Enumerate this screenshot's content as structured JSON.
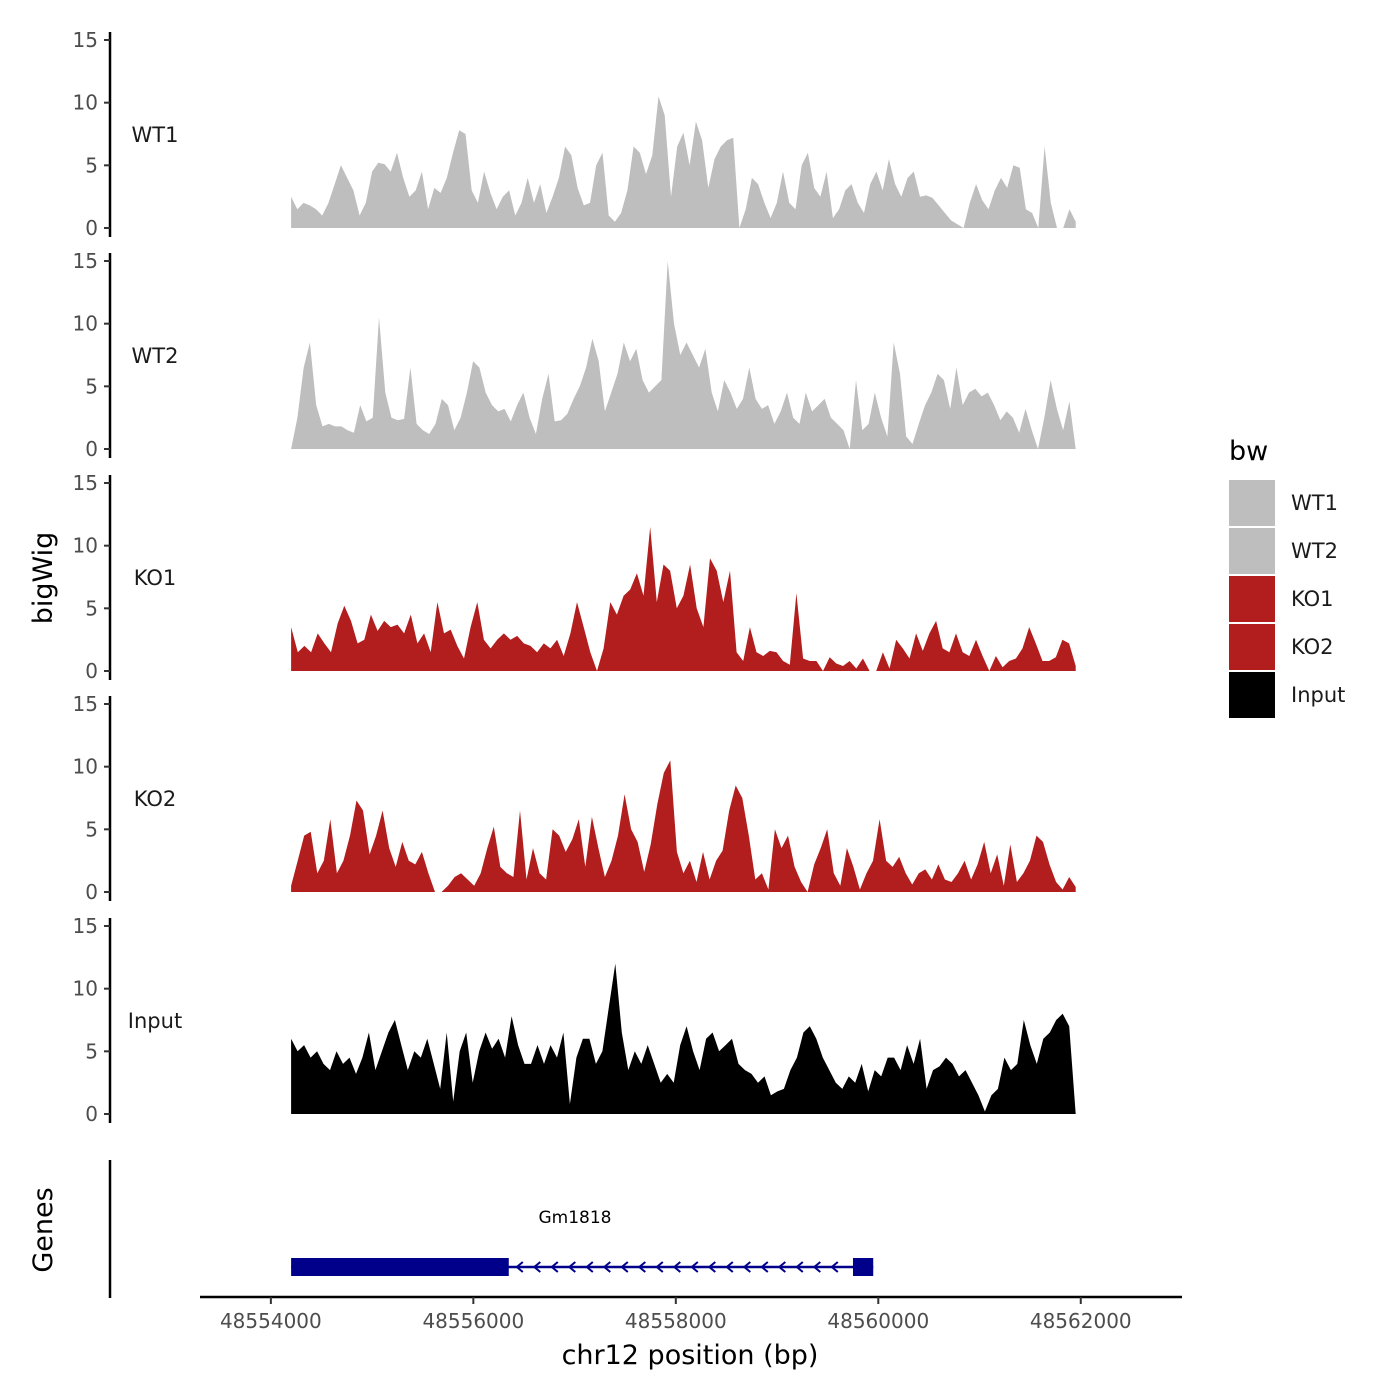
{
  "chart_data": {
    "type": "area",
    "subtype": "genome-coverage-tracks",
    "xlabel": "chr12 position (bp)",
    "ylabel": "bigWig",
    "genes_axis_label": "Genes",
    "xlim": [
      48553300,
      48563000
    ],
    "x_ticks": [
      48554000,
      48556000,
      48558000,
      48560000,
      48562000
    ],
    "x_tick_labels": [
      "48554000",
      "48556000",
      "48558000",
      "48560000",
      "48562000"
    ],
    "ylim": [
      0,
      15
    ],
    "y_ticks": [
      0,
      5,
      10,
      15
    ],
    "y_tick_labels": [
      "0",
      "5",
      "10",
      "15"
    ],
    "region": [
      48554200,
      48561950
    ],
    "legend": {
      "title": "bw",
      "entries": [
        {
          "label": "WT1",
          "color": "#bebebe"
        },
        {
          "label": "WT2",
          "color": "#bebebe"
        },
        {
          "label": "KO1",
          "color": "#b21e1e"
        },
        {
          "label": "KO2",
          "color": "#b21e1e"
        },
        {
          "label": "Input",
          "color": "#000000"
        }
      ]
    },
    "series": [
      {
        "name": "WT1",
        "color": "#bebebe",
        "values": [
          2.5,
          1.5,
          2,
          1.8,
          1.5,
          1,
          2,
          3.5,
          5,
          4,
          3,
          1,
          2,
          4.5,
          5.2,
          5.1,
          4.5,
          6,
          4,
          2.5,
          3,
          4.5,
          1.5,
          3.2,
          2.8,
          4,
          6,
          7.8,
          7.5,
          3,
          2,
          4.5,
          2.8,
          1.5,
          2.5,
          3,
          1,
          2,
          4,
          2,
          3.5,
          1.2,
          2.5,
          4,
          6.5,
          5.8,
          3.2,
          1.8,
          2,
          5,
          6,
          1,
          0.5,
          1.2,
          3,
          6.5,
          6,
          4.3,
          5.8,
          10.5,
          9,
          2.5,
          6.5,
          7.6,
          5,
          8.5,
          7,
          3.2,
          5.5,
          6.5,
          7,
          7.2,
          0,
          1.5,
          4,
          3.5,
          2,
          0.8,
          2,
          4.5,
          2,
          1.5,
          5,
          6,
          3.2,
          2.5,
          4.5,
          0.8,
          1.5,
          3,
          3.5,
          2,
          1.2,
          3.5,
          4.5,
          3,
          5.5,
          3.5,
          2.5,
          4,
          4.5,
          2.5,
          2.6,
          2.4,
          1.8,
          1.2,
          0.6,
          0.3,
          0,
          2,
          3.5,
          2.2,
          1.5,
          3,
          4,
          3.2,
          5,
          4.8,
          1.5,
          1.2,
          0,
          6.5,
          2,
          0,
          0,
          1.5,
          0.5
        ]
      },
      {
        "name": "WT2",
        "color": "#bebebe",
        "values": [
          0,
          2.5,
          6.5,
          8.5,
          3.5,
          1.8,
          2,
          1.8,
          1.8,
          1.5,
          1.3,
          3.5,
          2.2,
          2.5,
          10.5,
          4.5,
          2.5,
          2.3,
          2.4,
          6.5,
          2,
          1.5,
          1.2,
          2,
          4,
          3.5,
          1.5,
          2.5,
          4.5,
          7,
          6.5,
          4.5,
          3.5,
          3,
          3.2,
          2.2,
          3.5,
          4.5,
          2.5,
          1.2,
          4,
          6,
          2.2,
          2.3,
          2.8,
          4,
          5,
          6.5,
          8.8,
          7,
          3,
          4.5,
          6,
          8.5,
          7,
          8,
          5.5,
          4.5,
          5,
          5.5,
          15,
          10,
          7.5,
          8.5,
          7.5,
          6.5,
          8,
          4.5,
          3,
          5.5,
          4.5,
          3.2,
          4,
          6.5,
          4,
          3.2,
          3.5,
          2,
          3,
          4.5,
          2.5,
          2,
          4.5,
          3,
          3.5,
          4,
          2.5,
          2,
          1.5,
          0,
          5.5,
          1.5,
          2,
          4.5,
          2.5,
          1,
          8.5,
          6,
          1,
          0.4,
          2,
          3.5,
          4.5,
          6,
          5.5,
          3.2,
          6.5,
          3.5,
          4.5,
          4.8,
          4.2,
          4.5,
          3.5,
          2.3,
          3,
          2.5,
          1.3,
          3.2,
          1.5,
          0,
          2.5,
          5.5,
          3.2,
          1.5,
          3.8,
          0
        ]
      },
      {
        "name": "KO1",
        "color": "#b21e1e",
        "values": [
          3.5,
          1.5,
          2,
          1.5,
          3,
          2.2,
          1.5,
          3.8,
          5.2,
          4,
          2.2,
          2.5,
          4.5,
          3.2,
          4,
          3.5,
          3.7,
          3,
          4.5,
          2.2,
          3,
          1.5,
          5.5,
          3,
          3.3,
          2,
          1,
          3.5,
          5.5,
          2.5,
          1.8,
          2.5,
          3,
          2.5,
          2.8,
          2.2,
          2,
          1.5,
          2.2,
          1.8,
          2.5,
          1.2,
          3,
          5.5,
          3.5,
          1.5,
          0,
          1.8,
          5.5,
          4.5,
          6,
          6.5,
          7.8,
          6,
          11.5,
          5.5,
          8.5,
          8,
          5,
          6,
          8.5,
          5,
          3.5,
          9,
          8,
          5.5,
          8,
          1.5,
          0.8,
          3.5,
          1.5,
          1.2,
          1.6,
          1.5,
          0.8,
          0.5,
          6.2,
          1,
          0.8,
          0.8,
          0,
          1.1,
          0.6,
          0.4,
          0.8,
          0.2,
          1,
          0,
          0,
          1.5,
          0.2,
          2.5,
          1.8,
          1,
          3,
          1.6,
          3,
          4,
          1.8,
          1.5,
          3,
          1.5,
          1.2,
          2.5,
          1.2,
          0,
          1.2,
          0.3,
          0.8,
          1,
          1.8,
          3.5,
          2.2,
          0.8,
          0.8,
          1.1,
          2.5,
          2.2,
          0.4
        ]
      },
      {
        "name": "KO2",
        "color": "#b21e1e",
        "values": [
          0.5,
          2.5,
          4.5,
          4.8,
          1.5,
          2.5,
          5.8,
          1.5,
          2.5,
          4.5,
          7.3,
          6.5,
          3,
          4.5,
          6.5,
          3.5,
          2,
          4,
          2.5,
          2.2,
          3.2,
          1.5,
          0,
          0,
          0.5,
          1.2,
          1.5,
          1,
          0.5,
          1.5,
          3.5,
          5.2,
          2,
          1.5,
          1.2,
          6.5,
          1,
          3.5,
          1.5,
          1,
          5,
          4.5,
          3.2,
          4.2,
          5.8,
          2,
          6,
          3.5,
          1.2,
          2.5,
          4.5,
          7.8,
          5,
          4,
          1.6,
          3.8,
          7,
          9.5,
          10.5,
          3.2,
          1.5,
          2.5,
          0.8,
          3.2,
          1,
          2.5,
          3.3,
          6.5,
          8.5,
          7.5,
          4.5,
          1,
          1.5,
          0.2,
          5,
          3.5,
          4.5,
          2,
          0.8,
          0,
          2.2,
          3.5,
          5,
          1.5,
          0.5,
          3.5,
          2,
          0.2,
          1.5,
          2.5,
          5.8,
          2.5,
          2,
          2.8,
          1.5,
          0.6,
          1.5,
          1.8,
          1,
          2.2,
          1,
          0.8,
          1.5,
          2.5,
          1,
          2.2,
          4,
          1.5,
          3,
          0.5,
          3.8,
          0.8,
          1.5,
          2.5,
          4.5,
          4,
          2.2,
          0.8,
          0.2,
          1.2,
          0.4
        ]
      },
      {
        "name": "Input",
        "color": "#000000",
        "values": [
          6,
          5,
          5.5,
          4.5,
          5,
          4,
          3.5,
          5,
          4,
          4.5,
          3.2,
          4.5,
          6.5,
          3.5,
          5,
          6.5,
          7.5,
          5.5,
          3.5,
          5,
          4.5,
          6,
          4,
          2,
          6.5,
          1,
          5,
          6.5,
          2.5,
          5,
          6.5,
          5.2,
          6,
          4.5,
          7.8,
          5.5,
          4,
          4,
          5.5,
          4,
          5.5,
          4.5,
          6.5,
          0.8,
          4.5,
          6,
          6,
          4,
          5,
          8.5,
          12,
          6.5,
          3.5,
          5,
          4,
          5.5,
          4,
          2.5,
          3.2,
          2.5,
          5.5,
          7,
          5,
          3.5,
          6,
          6.5,
          5,
          5.5,
          6,
          4,
          3.5,
          3.2,
          2.5,
          3,
          1.5,
          1.8,
          2,
          3.5,
          4.5,
          6.5,
          7,
          6,
          4.5,
          3.5,
          2.5,
          2,
          3,
          2.5,
          4,
          1.8,
          3.5,
          3,
          4.5,
          4.5,
          3.5,
          5.5,
          4,
          6,
          2,
          3.5,
          3.8,
          4.5,
          4,
          3,
          3.5,
          2.5,
          1.5,
          0.2,
          1.5,
          2,
          4.5,
          3.5,
          4,
          7.5,
          5.5,
          4,
          6,
          6.5,
          7.5,
          8,
          7,
          0
        ]
      }
    ],
    "genes": [
      {
        "name": "Gm1818",
        "start": 48554200,
        "end": 48559950,
        "strand": "-",
        "exons": [
          [
            48554200,
            48556350
          ],
          [
            48559750,
            48559950
          ]
        ],
        "color": "#00008b"
      }
    ]
  }
}
